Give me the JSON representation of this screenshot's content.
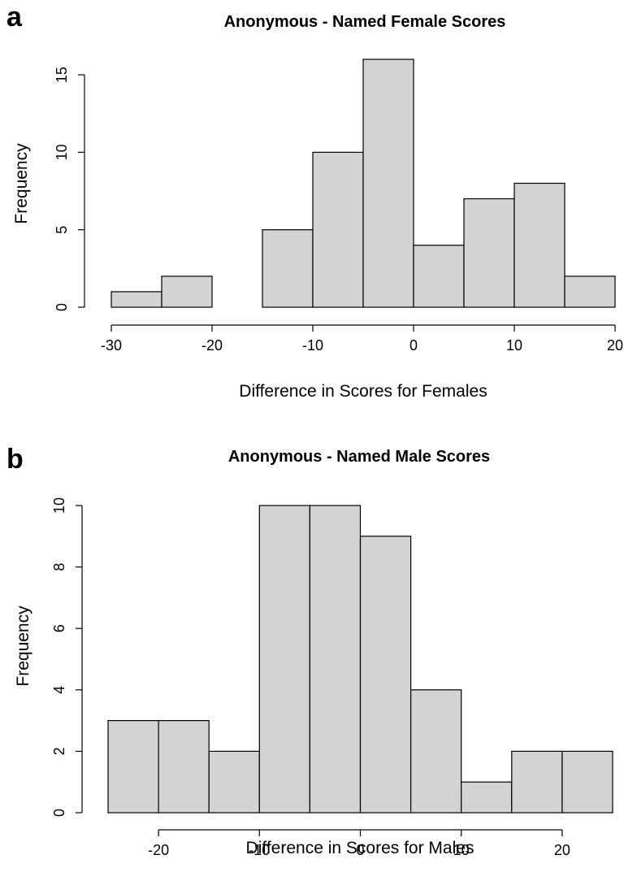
{
  "chart_data": [
    {
      "type": "bar",
      "panel": "a",
      "title": "Anonymous - Named Female Scores",
      "xlabel": "Difference in Scores for Females",
      "ylabel": "Frequency",
      "bin_edges": [
        -30,
        -25,
        -20,
        -15,
        -10,
        -5,
        0,
        5,
        10,
        15,
        20
      ],
      "values": [
        1,
        2,
        0,
        5,
        10,
        16,
        4,
        7,
        8,
        2
      ],
      "xlim": [
        -30,
        20
      ],
      "ylim": [
        0,
        16
      ],
      "x_ticks": [
        -30,
        -20,
        -10,
        0,
        10,
        20
      ],
      "y_ticks": [
        0,
        5,
        10,
        15
      ],
      "grid": false,
      "legend": "none"
    },
    {
      "type": "bar",
      "panel": "b",
      "title": "Anonymous - Named Male Scores",
      "xlabel": "Difference in Scores for Males",
      "ylabel": "Frequency",
      "bin_edges": [
        -25,
        -20,
        -15,
        -10,
        -5,
        0,
        5,
        10,
        15,
        20,
        25
      ],
      "values": [
        3,
        3,
        2,
        10,
        10,
        9,
        4,
        1,
        2,
        2
      ],
      "xlim": [
        -20,
        20
      ],
      "ylim": [
        0,
        10
      ],
      "x_ticks": [
        -20,
        -10,
        0,
        10,
        20
      ],
      "y_ticks": [
        0,
        2,
        4,
        6,
        8,
        10
      ],
      "grid": false,
      "legend": "none"
    }
  ]
}
